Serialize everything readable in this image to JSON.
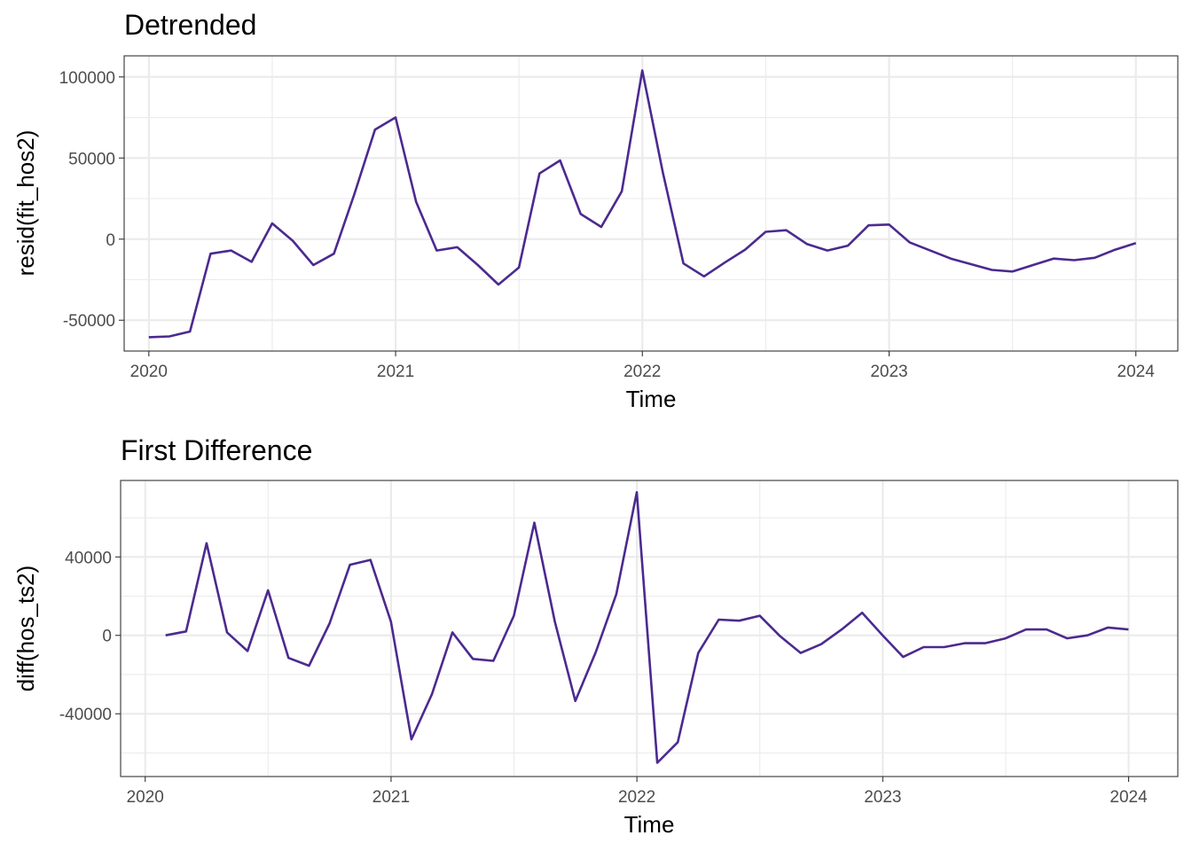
{
  "chart_data": [
    {
      "type": "line",
      "title": "Detrended",
      "xlabel": "Time",
      "ylabel": "resid(fit_hos2)",
      "xlim": [
        2019.9,
        2024.17
      ],
      "ylim": [
        -69000,
        113000
      ],
      "x_ticks": [
        2020,
        2021,
        2022,
        2023,
        2024
      ],
      "x_tick_labels": [
        "2020",
        "2021",
        "2022",
        "2023",
        "2024"
      ],
      "y_ticks": [
        -50000,
        0,
        50000,
        100000
      ],
      "y_tick_labels": [
        "-50000",
        "0",
        "50000",
        "100000"
      ],
      "grid": true,
      "color": "#4b2a8f",
      "series": [
        {
          "x_start": 2020.0,
          "x_step": 0.08333,
          "values": [
            -60500,
            -60000,
            -57000,
            -9000,
            -7000,
            -14000,
            9700,
            -1000,
            -16000,
            -9000,
            28000,
            67500,
            75000,
            23000,
            -7000,
            -5000,
            -16000,
            -28000,
            -17500,
            40500,
            48500,
            15500,
            7500,
            29500,
            104000,
            41000,
            -15000,
            -23000,
            -14500,
            -6500,
            4500,
            5500,
            -3000,
            -7000,
            -4000,
            8500,
            9000,
            -2000,
            -7000,
            -12000,
            -15500,
            -19000,
            -20000,
            -16000,
            -12000,
            -13000,
            -11500,
            -6500,
            -2500
          ]
        }
      ]
    },
    {
      "type": "line",
      "title": "First Difference",
      "xlabel": "Time",
      "ylabel": "diff(hos_ts2)",
      "xlim": [
        2019.9,
        2024.2
      ],
      "ylim": [
        -72000,
        79000
      ],
      "x_ticks": [
        2020,
        2021,
        2022,
        2023,
        2024
      ],
      "x_tick_labels": [
        "2020",
        "2021",
        "2022",
        "2023",
        "2024"
      ],
      "y_ticks": [
        -40000,
        0,
        40000
      ],
      "y_tick_labels": [
        "-40000",
        "0",
        "40000"
      ],
      "grid": true,
      "color": "#4b2a8f",
      "series": [
        {
          "x_start": 2020.083,
          "x_step": 0.08333,
          "values": [
            0,
            2000,
            47000,
            1500,
            -8000,
            23000,
            -11500,
            -15500,
            6000,
            36000,
            38500,
            7000,
            -53000,
            -30000,
            1500,
            -12000,
            -13000,
            10000,
            57500,
            7000,
            -33500,
            -8500,
            21000,
            73000,
            -65000,
            -54500,
            -9000,
            8000,
            7500,
            10000,
            -500,
            -9000,
            -4500,
            3000,
            11500,
            0,
            -11000,
            -6000,
            -6000,
            -4000,
            -4000,
            -1500,
            3000,
            3000,
            -1500,
            0,
            4000,
            3000
          ]
        }
      ]
    }
  ]
}
